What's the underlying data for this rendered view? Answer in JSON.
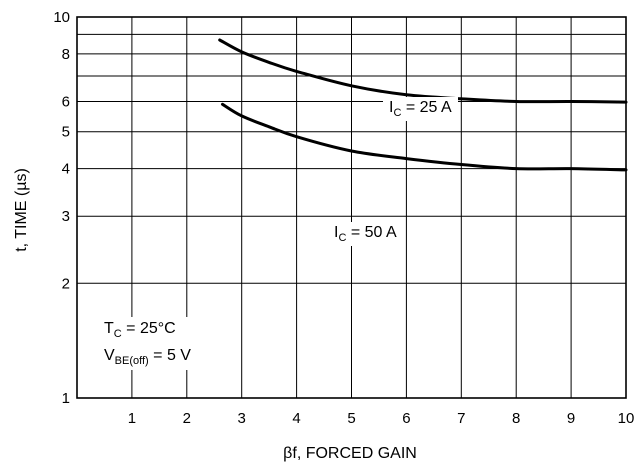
{
  "chart_data": {
    "type": "line",
    "xlabel": "βf, FORCED GAIN",
    "ylabel": "t, TIME (µs)",
    "x_ticks": [
      "1",
      "2",
      "3",
      "4",
      "5",
      "6",
      "7",
      "8",
      "9",
      "10"
    ],
    "y_ticks": [
      {
        "value": 1,
        "label": "1"
      },
      {
        "value": 2,
        "label": "2"
      },
      {
        "value": 3,
        "label": "3"
      },
      {
        "value": 4,
        "label": "4"
      },
      {
        "value": 5,
        "label": "5"
      },
      {
        "value": 6,
        "label": "6"
      },
      {
        "value": 8,
        "label": "8"
      },
      {
        "value": 10,
        "label": "10"
      }
    ],
    "xlim": [
      0,
      10
    ],
    "ylim": [
      1,
      10
    ],
    "grid": true,
    "series": [
      {
        "name": "IC = 25 A",
        "label": {
          "main": "I",
          "sub": "C",
          "rest": " = 25 A"
        },
        "x": [
          2.6,
          3,
          3.5,
          4,
          5,
          6,
          7,
          8,
          9,
          10
        ],
        "y": [
          8.7,
          8.1,
          7.6,
          7.2,
          6.6,
          6.25,
          6.1,
          6.0,
          6.0,
          5.98
        ]
      },
      {
        "name": "IC = 50 A",
        "label": {
          "main": "I",
          "sub": "C",
          "rest": " = 50 A"
        },
        "x": [
          2.65,
          3,
          3.5,
          4,
          5,
          6,
          7,
          8,
          9,
          10
        ],
        "y": [
          5.9,
          5.5,
          5.15,
          4.85,
          4.45,
          4.25,
          4.1,
          4.0,
          4.0,
          3.97
        ]
      }
    ],
    "annotation": {
      "line1": {
        "main": "T",
        "sub": "C",
        "rest": " = 25°C"
      },
      "line2": {
        "main": "V",
        "sub": "BE(off)",
        "rest": " = 5 V"
      }
    }
  }
}
